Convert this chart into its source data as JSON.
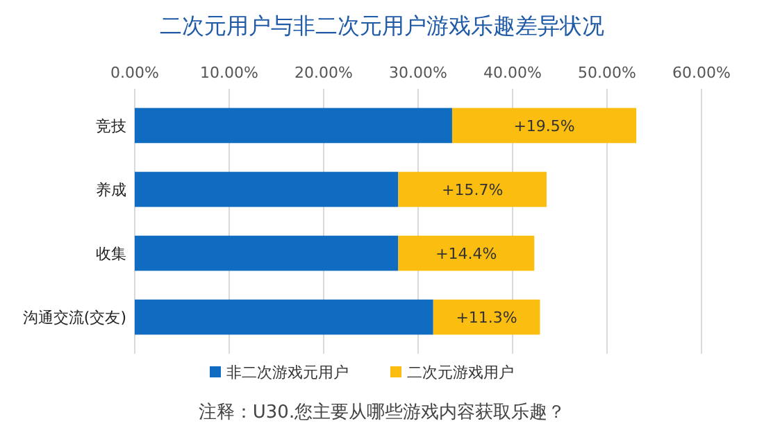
{
  "chart_data": {
    "type": "bar",
    "orientation": "horizontal",
    "stacked": true,
    "title": "二次元用户与非二次元用户游戏乐趣差异状况",
    "categories": [
      "竞技",
      "养成",
      "收集",
      "沟通交流(交友)"
    ],
    "series": [
      {
        "name": "非二次游戏元用户",
        "color": "#0f6cc0",
        "values": [
          33.6,
          27.9,
          27.9,
          31.6
        ]
      },
      {
        "name": "二次元游戏用户",
        "color": "#fbbd0f",
        "values": [
          19.5,
          15.7,
          14.4,
          11.3
        ],
        "value_labels": [
          "+19.5%",
          "+15.7%",
          "+14.4%",
          "+11.3%"
        ]
      }
    ],
    "xlim": [
      0,
      60
    ],
    "xticks": [
      {
        "value": 0,
        "label": "0.00%"
      },
      {
        "value": 10,
        "label": "10.00%"
      },
      {
        "value": 20,
        "label": "20.00%"
      },
      {
        "value": 30,
        "label": "30.00%"
      },
      {
        "value": 40,
        "label": "40.00%"
      },
      {
        "value": 50,
        "label": "50.00%"
      },
      {
        "value": 60,
        "label": "60.00%"
      }
    ],
    "grid": "x",
    "legend": "bottom",
    "annotations": [
      "注释：U30.您主要从哪些游戏内容获取乐趣？"
    ]
  }
}
